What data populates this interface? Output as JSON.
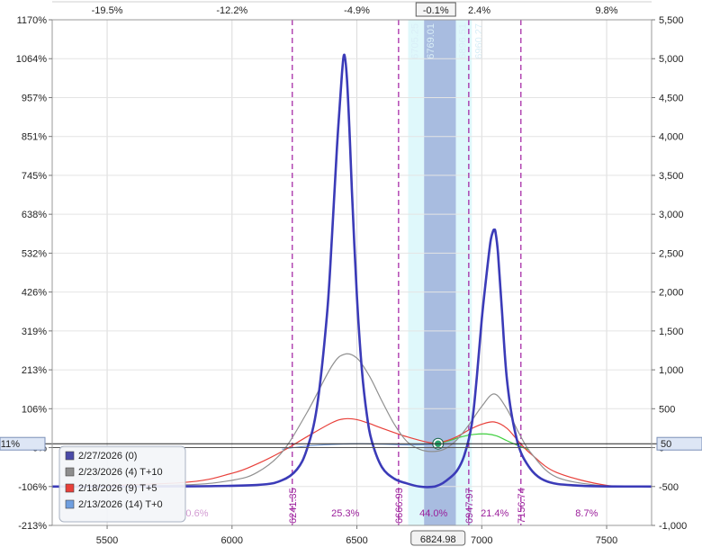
{
  "chart_data": {
    "type": "line",
    "x_range": [
      5280,
      7680
    ],
    "x_ticks": [
      5500,
      6000,
      6500,
      7000,
      7500
    ],
    "left_axis": {
      "ticks": [
        "1170%",
        "1064%",
        "957%",
        "851%",
        "745%",
        "638%",
        "532%",
        "426%",
        "319%",
        "213%",
        "106%",
        "0%",
        "-106%",
        "-213%"
      ],
      "current_label": "11%"
    },
    "right_axis": {
      "range": [
        -1000,
        5500
      ],
      "ticks": [
        "5,500",
        "5,000",
        "4,500",
        "4,000",
        "3,500",
        "3,000",
        "2,500",
        "2,000",
        "1,500",
        "1,000",
        "500",
        "0",
        "-500",
        "-1,000"
      ],
      "current_label": "50"
    },
    "top_axis": {
      "ticks": [
        {
          "x": 5500,
          "label": "-19.5%"
        },
        {
          "x": 6000,
          "label": "-12.2%"
        },
        {
          "x": 6500,
          "label": "-4.9%"
        },
        {
          "x": 6816,
          "label": "-0.1%",
          "boxed": true
        },
        {
          "x": 6990,
          "label": "2.4%"
        },
        {
          "x": 7500,
          "label": "9.8%"
        }
      ]
    },
    "current_price_label": "6824.98",
    "bands": [
      {
        "from": 6705.25,
        "to": 6769.01,
        "label": "6705.25"
      },
      {
        "from": 6769.01,
        "to": 6896.51,
        "label": "6769.01"
      },
      {
        "from": 6896.51,
        "to": 6960.27,
        "label": "6896.51"
      }
    ],
    "band_extra_label": "6960.27",
    "vlines": [
      {
        "x": 6241.35,
        "label": "6241.35"
      },
      {
        "x": 6666.93,
        "label": "6666.93"
      },
      {
        "x": 6947.97,
        "label": "6947.97"
      },
      {
        "x": 7156.74,
        "label": "7156.74"
      }
    ],
    "zone_pcts": [
      {
        "x": 5860,
        "label": "0.6%"
      },
      {
        "x": 6454,
        "label": "25.3%"
      },
      {
        "x": 6807,
        "label": "44.0%"
      },
      {
        "x": 7052,
        "label": "21.4%"
      },
      {
        "x": 7420,
        "label": "8.7%"
      }
    ],
    "legend": [
      {
        "label": "2/27/2026 (0)",
        "color": "#4a4aa8"
      },
      {
        "label": "2/23/2026 (4) T+10",
        "color": "#8e8e8e"
      },
      {
        "label": "2/18/2026 (9) T+5",
        "color": "#e8403a"
      },
      {
        "label": "2/13/2026 (14) T+0",
        "color": "#6f9fe0"
      }
    ],
    "series": [
      {
        "name": "2/27/2026 (0)",
        "color": "#3b3bb8",
        "width": 2.6,
        "x": [
          5280,
          5800,
          6100,
          6200,
          6260,
          6300,
          6340,
          6380,
          6400,
          6420,
          6440,
          6450,
          6460,
          6470,
          6480,
          6500,
          6520,
          6540,
          6560,
          6600,
          6650,
          6700,
          6750,
          6800,
          6830,
          6860,
          6900,
          6930,
          6960,
          6980,
          7000,
          7020,
          7035,
          7045,
          7050,
          7055,
          7065,
          7080,
          7100,
          7130,
          7170,
          7250,
          7400,
          7680
        ],
        "y": [
          -500,
          -498,
          -480,
          -420,
          -280,
          -20,
          520,
          1700,
          2700,
          3850,
          4800,
          5050,
          4750,
          4100,
          3300,
          1950,
          1000,
          420,
          80,
          -250,
          -400,
          -460,
          -500,
          -505,
          -480,
          -420,
          -300,
          -100,
          300,
          900,
          1650,
          2250,
          2650,
          2780,
          2800,
          2770,
          2500,
          1800,
          900,
          250,
          -150,
          -420,
          -490,
          -500
        ]
      },
      {
        "name": "2/23/2026 (4) T+10",
        "color": "#909090",
        "width": 1.2,
        "x": [
          5280,
          5800,
          6000,
          6100,
          6200,
          6300,
          6400,
          6450,
          6500,
          6550,
          6600,
          6650,
          6700,
          6750,
          6800,
          6850,
          6900,
          6950,
          7000,
          7050,
          7100,
          7150,
          7200,
          7300,
          7500,
          7680
        ],
        "y": [
          -500,
          -480,
          -420,
          -320,
          -60,
          450,
          1050,
          1200,
          1150,
          920,
          600,
          300,
          80,
          -20,
          -50,
          -20,
          100,
          300,
          530,
          690,
          500,
          180,
          -80,
          -380,
          -495,
          -500
        ]
      },
      {
        "name": "2/18/2026 (9) T+5",
        "color": "#e8403a",
        "width": 1.2,
        "x": [
          5280,
          5800,
          6000,
          6100,
          6200,
          6300,
          6400,
          6450,
          6500,
          6550,
          6600,
          6700,
          6800,
          6850,
          6900,
          6950,
          7000,
          7050,
          7100,
          7150,
          7200,
          7300,
          7500,
          7680
        ],
        "y": [
          -500,
          -450,
          -330,
          -210,
          -50,
          140,
          320,
          370,
          360,
          310,
          250,
          140,
          60,
          80,
          140,
          230,
          300,
          330,
          250,
          70,
          -90,
          -320,
          -485,
          -500
        ]
      },
      {
        "name": "2/13/2026 (14) T+0",
        "color": "#7da3dc",
        "width": 1.2,
        "x": [
          6200,
          6300,
          6400,
          6500,
          6600,
          6700,
          6800,
          6825
        ],
        "y": [
          -20,
          20,
          40,
          50,
          45,
          35,
          40,
          50
        ]
      },
      {
        "name": "2/13/2026 (14) T+0 upside",
        "color": "#3fcf3f",
        "width": 1.2,
        "x": [
          6825,
          6870,
          6920,
          6970,
          7020,
          7060,
          7100,
          7150,
          7190
        ],
        "y": [
          50,
          90,
          140,
          170,
          175,
          150,
          90,
          20,
          -30
        ]
      }
    ],
    "current_point": {
      "x": 6824.98,
      "y": 50
    }
  }
}
